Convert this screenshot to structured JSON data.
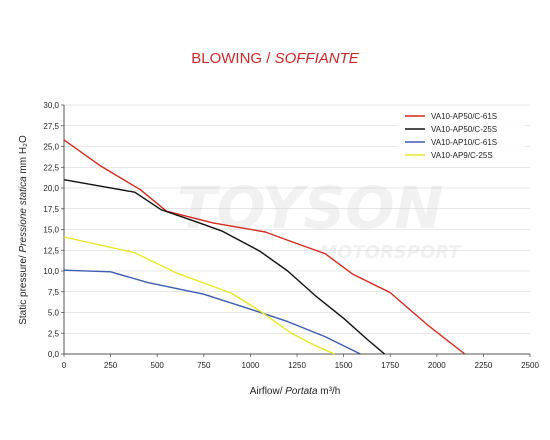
{
  "title": {
    "main": "BLOWING / ",
    "italic": "SOFFIANTE"
  },
  "watermark": {
    "brand": "TOYSON",
    "sub": "MOTORSPORT"
  },
  "chart_data": {
    "type": "line",
    "xlabel_plain": "Airflow/ ",
    "xlabel_italic": "Portata",
    "xlabel_unit": " m³/h",
    "ylabel_plain": "Static pressure/ ",
    "ylabel_italic": "Pressione statica",
    "ylabel_unit": "  mm H₂O",
    "xlim": [
      0,
      2500
    ],
    "ylim": [
      0,
      30
    ],
    "xticks": [
      "0",
      "250",
      "500",
      "750",
      "1000",
      "1250",
      "1500",
      "1750",
      "2000",
      "2250",
      "2500"
    ],
    "yticks": [
      "0,0",
      "2,5",
      "5,0",
      "7,5",
      "10,0",
      "12,5",
      "15,0",
      "17,5",
      "20,0",
      "22,5",
      "25,0",
      "27,5",
      "30,0"
    ],
    "grid": "horizontal",
    "legend_position": "top-right",
    "series": [
      {
        "name": "VA10-AP50/C-61S",
        "color": "#d42a20",
        "points": [
          [
            0,
            25.8
          ],
          [
            200,
            22.6
          ],
          [
            410,
            19.8
          ],
          [
            550,
            17.2
          ],
          [
            800,
            15.8
          ],
          [
            1080,
            14.7
          ],
          [
            1250,
            13.3
          ],
          [
            1400,
            12.1
          ],
          [
            1550,
            9.6
          ],
          [
            1750,
            7.4
          ],
          [
            1950,
            3.5
          ],
          [
            2150,
            0
          ]
        ]
      },
      {
        "name": "VA10-AP50/C-25S",
        "color": "#111111",
        "points": [
          [
            0,
            21.0
          ],
          [
            200,
            20.2
          ],
          [
            380,
            19.5
          ],
          [
            520,
            17.4
          ],
          [
            700,
            16.0
          ],
          [
            850,
            14.8
          ],
          [
            1050,
            12.4
          ],
          [
            1200,
            10.0
          ],
          [
            1350,
            7.0
          ],
          [
            1500,
            4.3
          ],
          [
            1630,
            1.7
          ],
          [
            1720,
            0
          ]
        ]
      },
      {
        "name": "VA10-AP10/C-61S",
        "color": "#3c5cb0",
        "points": [
          [
            0,
            10.1
          ],
          [
            250,
            9.9
          ],
          [
            450,
            8.6
          ],
          [
            750,
            7.2
          ],
          [
            1000,
            5.4
          ],
          [
            1200,
            3.9
          ],
          [
            1400,
            2.1
          ],
          [
            1590,
            0
          ]
        ]
      },
      {
        "name": "VA10-AP9/C-25S",
        "color": "#e6e628",
        "points": [
          [
            0,
            14.1
          ],
          [
            200,
            13.1
          ],
          [
            380,
            12.2
          ],
          [
            600,
            9.8
          ],
          [
            900,
            7.3
          ],
          [
            1050,
            5.2
          ],
          [
            1220,
            2.5
          ],
          [
            1350,
            1.0
          ],
          [
            1450,
            0
          ]
        ]
      }
    ]
  }
}
